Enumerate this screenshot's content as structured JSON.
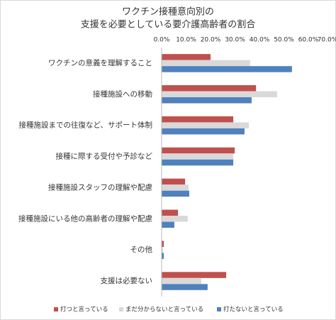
{
  "chart_data": {
    "type": "bar",
    "orientation": "horizontal",
    "title": [
      "ワクチン接種意向別の",
      "支援を必要としている要介護高齢者の割合"
    ],
    "categories": [
      "ワクチンの意義を理解すること",
      "接種施設への移動",
      "接種施設までの往復など、サポート体制",
      "接種に際する受付や予診など",
      "接種施設スタッフの理解や配慮",
      "接種施設にいる他の高齢者の理解や配慮",
      "その他",
      "支援は必要ない"
    ],
    "series": [
      {
        "name": "打つと言っている",
        "color": "#c0504d",
        "values": [
          20.0,
          38.6,
          29.3,
          29.9,
          9.6,
          6.7,
          0.9,
          26.4
        ]
      },
      {
        "name": "まだ分からないと言っている",
        "color": "#d9d9d9",
        "values": [
          36.2,
          47.2,
          35.7,
          29.3,
          11.0,
          10.7,
          0.6,
          16.2
        ]
      },
      {
        "name": "打たないと言っている",
        "color": "#4f81bd",
        "values": [
          53.3,
          36.8,
          33.9,
          29.3,
          11.3,
          5.2,
          0.9,
          18.8
        ]
      }
    ],
    "xlim": [
      0,
      70
    ],
    "xticks": [
      {
        "value": 0,
        "label": "0.0%"
      },
      {
        "value": 10,
        "label": "10.0%"
      },
      {
        "value": 20,
        "label": "20.0%"
      },
      {
        "value": 30,
        "label": "30.0%"
      },
      {
        "value": 40,
        "label": "40.0%"
      },
      {
        "value": 50,
        "label": "50.0%"
      },
      {
        "value": 60,
        "label": "60.0%"
      },
      {
        "value": 70,
        "label": "70.0%"
      }
    ],
    "grid": false,
    "legend": "bottom"
  }
}
